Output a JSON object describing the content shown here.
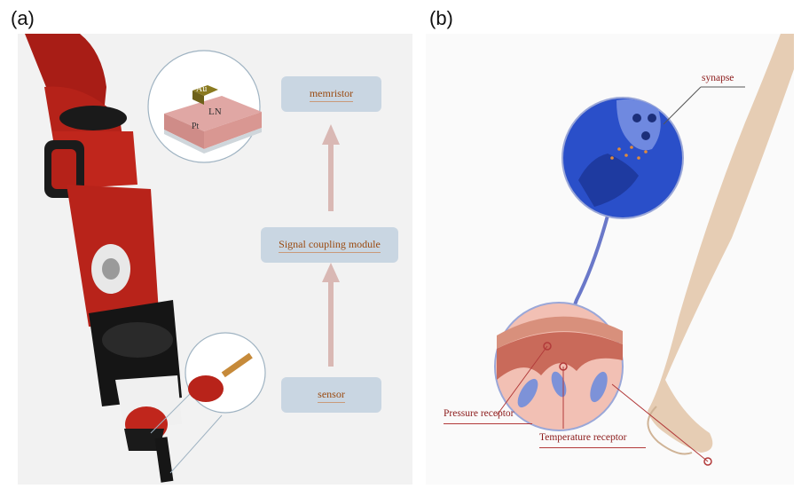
{
  "panels": {
    "a": {
      "label": "(a)",
      "memristor_box": "memristor",
      "signal_box": "Signal coupling module",
      "sensor_box": "sensor",
      "layer_top": "Au",
      "layer_mid": "LN",
      "layer_bottom": "Pt"
    },
    "b": {
      "label": "(b)",
      "synapse": "synapse",
      "pressure": "Pressure receptor",
      "temperature": "Temperature receptor"
    }
  },
  "colors": {
    "robot_red": "#b0201a",
    "box_fill": "#c9d6e2",
    "arrow": "#d9b8b4",
    "synapse_blue": "#2a4fc9",
    "label_red": "#8b1a1a",
    "skin": "#e6cdb4"
  }
}
